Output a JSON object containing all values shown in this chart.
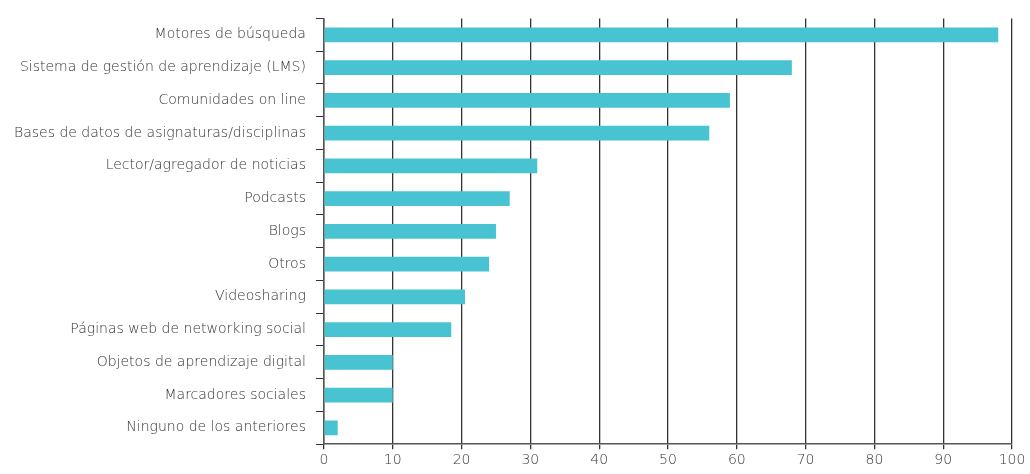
{
  "chart_data": {
    "type": "bar",
    "orientation": "horizontal",
    "categories": [
      "Motores de búsqueda",
      "Sistema de gestión de aprendizaje (LMS)",
      "Comunidades on line",
      "Bases de datos de asignaturas/disciplinas",
      "Lector/agregador de noticias",
      "Podcasts",
      "Blogs",
      "Otros",
      "Videosharing",
      "Páginas web de networking social",
      "Objetos de aprendizaje digital",
      "Marcadores sociales",
      "Ninguno de los anteriores"
    ],
    "values": [
      98,
      68,
      59,
      56,
      31,
      27,
      25,
      24,
      20.5,
      18.5,
      10,
      10,
      2
    ],
    "color": "#48c3d1",
    "xlim": [
      0,
      100
    ],
    "xticks": [
      0,
      10,
      20,
      30,
      40,
      50,
      60,
      70,
      80,
      90,
      100
    ],
    "grid": "x"
  }
}
